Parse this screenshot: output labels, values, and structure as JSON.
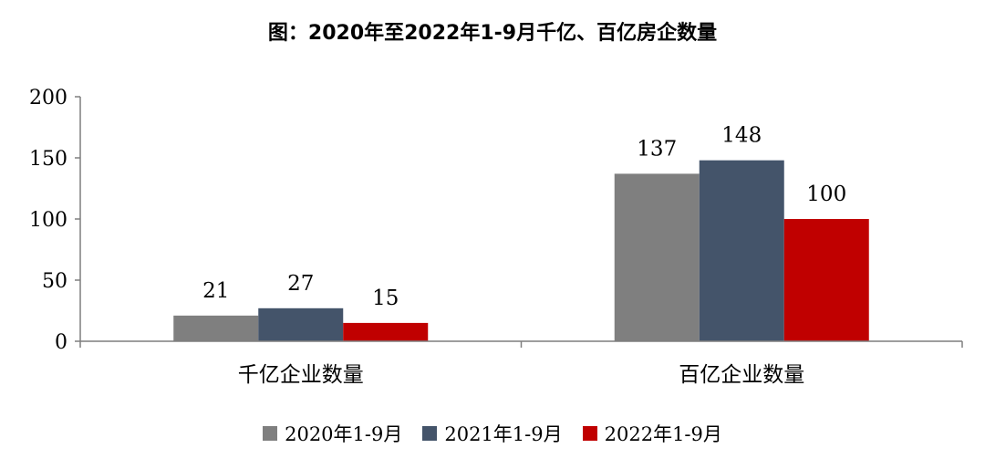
{
  "chart_data": {
    "type": "bar",
    "title": "图：2020年至2022年1-9月千亿、百亿房企数量",
    "categories": [
      "千亿企业数量",
      "百亿企业数量"
    ],
    "series": [
      {
        "name": "2020年1-9月",
        "values": [
          21,
          137
        ],
        "color": "#7f7f7f"
      },
      {
        "name": "2021年1-9月",
        "values": [
          27,
          148
        ],
        "color": "#44546a"
      },
      {
        "name": "2022年1-9月",
        "values": [
          15,
          100
        ],
        "color": "#c00000"
      }
    ],
    "ylim": [
      0,
      200
    ],
    "yticks": [
      0,
      50,
      100,
      150,
      200
    ],
    "grid": false,
    "legend_position": "bottom"
  }
}
